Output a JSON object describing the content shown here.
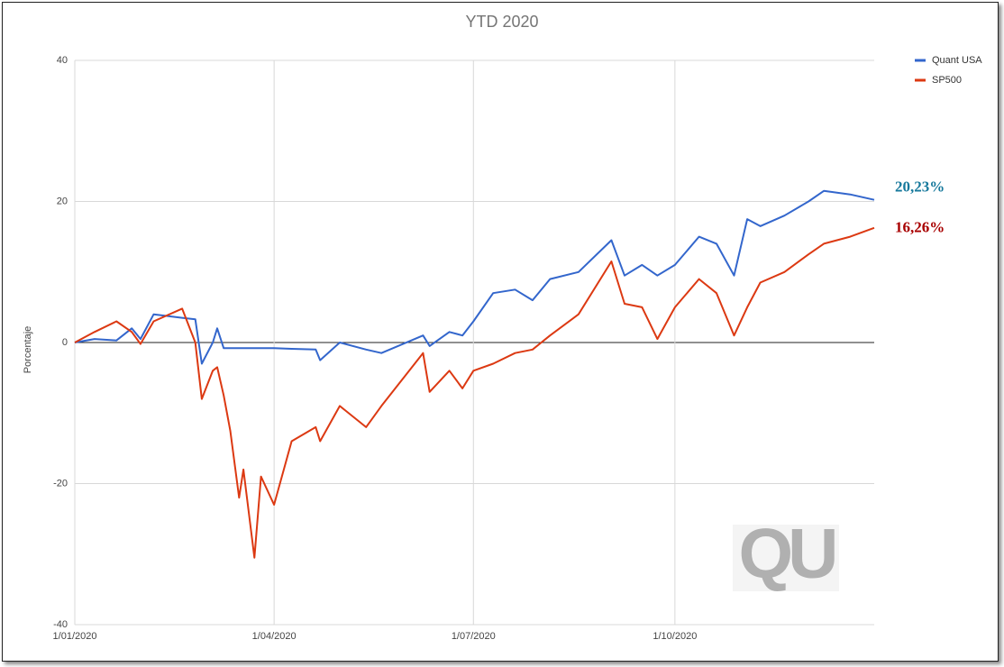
{
  "chart_data": {
    "type": "line",
    "title": "YTD 2020",
    "ylabel": "Porcentaje",
    "x": [
      "2020-01-01",
      "2020-01-10",
      "2020-01-20",
      "2020-01-27",
      "2020-01-31",
      "2020-02-06",
      "2020-02-19",
      "2020-02-25",
      "2020-02-28",
      "2020-03-04",
      "2020-03-06",
      "2020-03-09",
      "2020-03-12",
      "2020-03-16",
      "2020-03-18",
      "2020-03-23",
      "2020-03-26",
      "2020-04-01",
      "2020-04-09",
      "2020-04-20",
      "2020-04-22",
      "2020-05-01",
      "2020-05-13",
      "2020-05-20",
      "2020-06-08",
      "2020-06-11",
      "2020-06-20",
      "2020-06-26",
      "2020-07-01",
      "2020-07-10",
      "2020-07-20",
      "2020-07-28",
      "2020-08-05",
      "2020-08-18",
      "2020-09-02",
      "2020-09-08",
      "2020-09-16",
      "2020-09-23",
      "2020-10-01",
      "2020-10-12",
      "2020-10-20",
      "2020-10-28",
      "2020-11-03",
      "2020-11-09",
      "2020-11-20",
      "2020-12-01",
      "2020-12-08",
      "2020-12-20",
      "2020-12-31"
    ],
    "series": [
      {
        "name": "Quant USA",
        "color": "#3366cc",
        "values": [
          0,
          0.5,
          0.3,
          2,
          0.5,
          4,
          3.5,
          3.3,
          -3,
          0,
          2,
          -0.8,
          -0.8,
          -0.8,
          -0.8,
          -0.8,
          -0.8,
          -0.8,
          -0.9,
          -1,
          -2.5,
          0,
          -1,
          -1.5,
          1,
          -0.5,
          1.5,
          1,
          3,
          7,
          7.5,
          6,
          9,
          10,
          14.5,
          9.5,
          11,
          9.5,
          11,
          15,
          14,
          9.5,
          17.5,
          16.5,
          18,
          20,
          21.5,
          21,
          20.23
        ]
      },
      {
        "name": "SP500",
        "color": "#dc3912",
        "values": [
          0,
          1.5,
          3,
          1.5,
          -0.2,
          3,
          4.8,
          0,
          -8,
          -4,
          -3.5,
          -7.5,
          -12.5,
          -22,
          -18,
          -30.5,
          -19,
          -23,
          -14,
          -12,
          -14,
          -9,
          -12,
          -9,
          -1.5,
          -7,
          -4,
          -6.5,
          -4,
          -3,
          -1.5,
          -1,
          1,
          4,
          11.5,
          5.5,
          5,
          0.5,
          5,
          9,
          7,
          1,
          5,
          8.5,
          10,
          12.5,
          14,
          15,
          16.26
        ]
      }
    ],
    "annotations": [
      {
        "text": "20,23%",
        "color": "#17799c"
      },
      {
        "text": "16,26%",
        "color": "#a80000"
      }
    ],
    "watermark": "QU",
    "xlim": [
      "2020-01-01",
      "2020-12-31"
    ],
    "xticks": [
      {
        "value": "2020-01-01",
        "label": "1/01/2020"
      },
      {
        "value": "2020-04-01",
        "label": "1/04/2020"
      },
      {
        "value": "2020-07-01",
        "label": "1/07/2020"
      },
      {
        "value": "2020-10-01",
        "label": "1/10/2020"
      }
    ],
    "ylim": [
      -40,
      40
    ],
    "yticks": [
      -40,
      -20,
      0,
      20,
      40
    ],
    "grid": true,
    "legend": "top-right"
  }
}
